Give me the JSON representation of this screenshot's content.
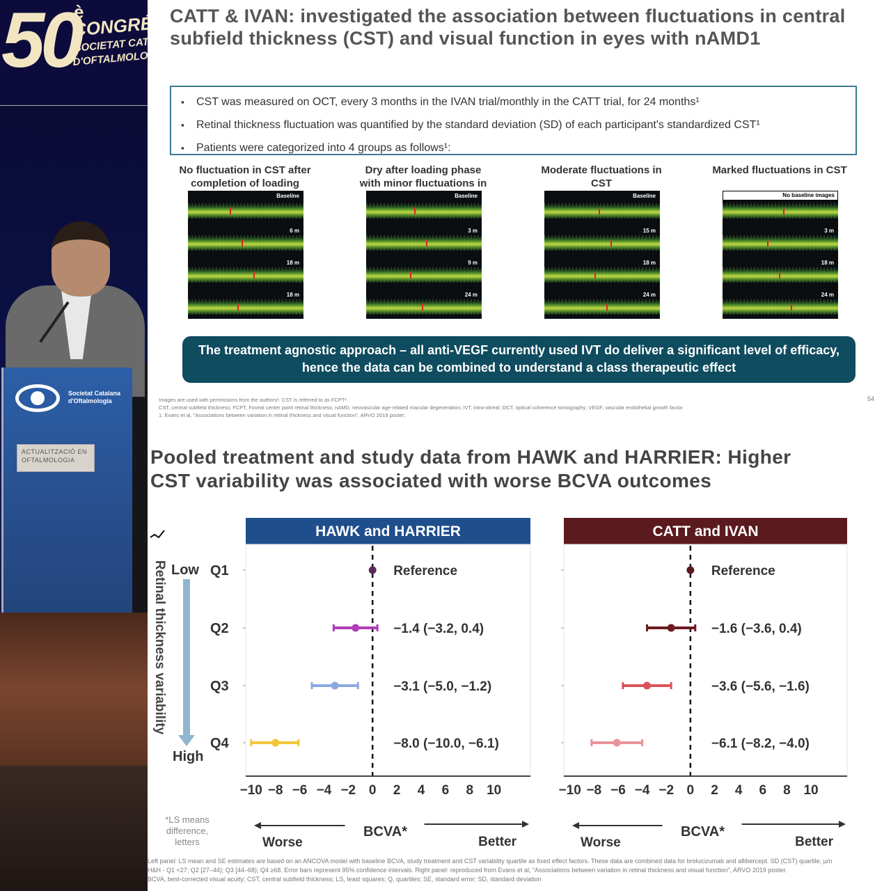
{
  "photo": {
    "congress_number": "50",
    "congress_sup": "è",
    "congress_word": "CONGRÉS",
    "society_line1": "SOCIETAT CATALANA",
    "society_line2": "D'OFTALMOLOGIA",
    "lectern_logo_text": "Societat Catalana d'Oftalmologia",
    "lectern_box_text": "ACTUALITZACIÓ EN OFTALMOLOGIA"
  },
  "slide1": {
    "title": "CATT & IVAN: investigated the association between fluctuations in central subfield thickness (CST) and visual function in eyes with nAMD1",
    "bullets": [
      "CST was measured on OCT, every 3 months in the IVAN trial/monthly in the CATT trial, for 24 months¹",
      "Retinal thickness fluctuation was quantified by the standard deviation (SD) of each participant's standardized CST¹",
      "Patients were categorized into 4 groups as follows¹:"
    ],
    "groups": [
      {
        "caption": "No fluctuation in CST after completion of loading",
        "tags": [
          "Baseline",
          "6 m",
          "18 m",
          "18 m"
        ]
      },
      {
        "caption": "Dry after loading phase with minor fluctuations in CST",
        "tags": [
          "Baseline",
          "3 m",
          "9 m",
          "24 m"
        ]
      },
      {
        "caption": "Moderate fluctuations in CST",
        "tags": [
          "Baseline",
          "15 m",
          "18 m",
          "24 m"
        ]
      },
      {
        "caption": "Marked fluctuations in CST",
        "tags": [
          "No baseline images",
          "3 m",
          "18 m",
          "24 m"
        ]
      }
    ],
    "banner": "The treatment agnostic approach – all anti-VEGF currently used IVT do deliver a significant level of efficacy, hence the data can be combined to understand a class therapeutic effect",
    "fine_print": [
      "Images are used with permissions from the authors¹. CST is referred to as FCPT¹",
      "CST, central subfield thickness; FCPT, Foveal center point retinal thickness; nAMD, neovascular age-related macular degeneration; IVT, intra-vitreal; OCT, optical coherence tomography; VEGF, vascular endothelial growth factor",
      "1. Evans et al, \"Associations between variation in retinal thickness and visual function\", ARVO 2019 poster;"
    ],
    "page_number": "54"
  },
  "slide2": {
    "title_line1": "Pooled treatment and study data from HAWK and HARRIER: Higher",
    "title_line2": "CST variability was associated with worse BCVA outcomes",
    "footnotes": [
      "Left panel: LS mean and SE estimates are based on an ANCOVA model with baseline BCVA, study treatment and CST variability quartile as fixed effect factors. These data are combined data for brolucizumab and aflibercept. SD (CST) quartile, µm",
      "H&H - Q1 <27; Q2 [27–44); Q3 [44–68); Q4 ≥68. Error bars represent 95% confidence intervals. Right panel: reproduced from Evans et al, \"Associations between variation in retinal thickness and visual function\", ARVO 2019 poster.",
      "BCVA, best-corrected visual acuity; CST, central subfield thickness; LS, least squares; Q, quartiles; SE, standard error; SD, standard deviation"
    ]
  },
  "chart_data": [
    {
      "type": "scatter",
      "title": "HAWK and HARRIER",
      "header_color": "#1f4e8c",
      "categories": [
        "Q1",
        "Q2",
        "Q3",
        "Q4"
      ],
      "y_axis_label": "Retinal thickness variability",
      "y_low_label": "Low",
      "y_high_label": "High",
      "xlabel": "BCVA*",
      "x_worse_label": "Worse",
      "x_better_label": "Better",
      "x_ticks": [
        -10,
        -8,
        -6,
        -4,
        -2,
        0,
        2,
        4,
        6,
        8,
        10
      ],
      "xlim": [
        -10.5,
        13
      ],
      "points": [
        {
          "quartile": "Q1",
          "estimate": 0,
          "lower": 0,
          "upper": 0,
          "label": "Reference",
          "color": "#5a2a5a"
        },
        {
          "quartile": "Q2",
          "estimate": -1.4,
          "lower": -3.2,
          "upper": 0.4,
          "label": "−1.4 (−3.2, 0.4)",
          "color": "#b03cb8"
        },
        {
          "quartile": "Q3",
          "estimate": -3.1,
          "lower": -5.0,
          "upper": -1.2,
          "label": "−3.1 (−5.0, −1.2)",
          "color": "#8aa8de"
        },
        {
          "quartile": "Q4",
          "estimate": -8.0,
          "lower": -10.0,
          "upper": -6.1,
          "label": "−8.0 (−10.0, −6.1)",
          "color": "#f2c53a"
        }
      ],
      "ls_note": "*LS means difference, letters"
    },
    {
      "type": "scatter",
      "title": "CATT and IVAN",
      "header_color": "#5a1a1e",
      "categories": [
        "Q1",
        "Q2",
        "Q3",
        "Q4"
      ],
      "xlabel": "BCVA*",
      "x_worse_label": "Worse",
      "x_better_label": "Better",
      "x_ticks": [
        -10,
        -8,
        -6,
        -4,
        -2,
        0,
        2,
        4,
        6,
        8,
        10
      ],
      "xlim": [
        -10.5,
        13
      ],
      "points": [
        {
          "quartile": "Q1",
          "estimate": 0,
          "lower": 0,
          "upper": 0,
          "label": "Reference",
          "color": "#5a1a1e"
        },
        {
          "quartile": "Q2",
          "estimate": -1.6,
          "lower": -3.6,
          "upper": 0.4,
          "label": "−1.6 (−3.6, 0.4)",
          "color": "#6e1a22"
        },
        {
          "quartile": "Q3",
          "estimate": -3.6,
          "lower": -5.6,
          "upper": -1.6,
          "label": "−3.6 (−5.6, −1.6)",
          "color": "#d9545a"
        },
        {
          "quartile": "Q4",
          "estimate": -6.1,
          "lower": -8.2,
          "upper": -4.0,
          "label": "−6.1 (−8.2, −4.0)",
          "color": "#e8939a"
        }
      ]
    }
  ]
}
